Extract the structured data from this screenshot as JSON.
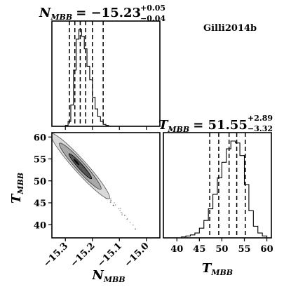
{
  "annotation": "Gilli2014b",
  "chart_data": [
    {
      "type": "histogram",
      "panel": "N_MBB marginal",
      "title_param": "N",
      "title_sub": "MBB",
      "title_value": "= −15.23",
      "title_plus": "+0.05",
      "title_minus": "−0.04",
      "xlim": [
        -15.35,
        -14.95
      ],
      "quantiles": [
        -15.285,
        -15.265,
        -15.245,
        -15.225,
        -15.2,
        -15.16
      ],
      "bins": [
        -15.35,
        -15.34,
        -15.33,
        -15.32,
        -15.31,
        -15.3,
        -15.29,
        -15.28,
        -15.27,
        -15.26,
        -15.25,
        -15.24,
        -15.23,
        -15.22,
        -15.21,
        -15.2,
        -15.19,
        -15.18,
        -15.17,
        -15.16,
        -15.15,
        -15.14,
        -15.13,
        -15.12,
        -15.11,
        -15.1,
        -15.09,
        -15.08,
        -15.07,
        -15.06,
        -15.05,
        -15.04,
        -15.03,
        -15.02,
        -15.01,
        -15.0,
        -14.99,
        -14.98,
        -14.97,
        -14.96,
        -14.95
      ],
      "counts": [
        0,
        0,
        0,
        0,
        0,
        1,
        5,
        22,
        58,
        90,
        100,
        93,
        80,
        62,
        48,
        30,
        18,
        10,
        5,
        2,
        1,
        0,
        0,
        0,
        0,
        0,
        0,
        0,
        0,
        0,
        0,
        0,
        0,
        0,
        0,
        0,
        0,
        0,
        0,
        0
      ]
    },
    {
      "type": "scatter",
      "panel": "joint posterior",
      "xlabel": "N",
      "xlabel_sub": "MBB",
      "ylabel": "T",
      "ylabel_sub": "MBB",
      "xlim": [
        -15.35,
        -14.95
      ],
      "ylim": [
        37,
        61
      ],
      "xticks": [
        -15.3,
        -15.2,
        -15.1,
        -15.0
      ],
      "xtick_labels": [
        "−15.3",
        "−15.2",
        "−15.1",
        "−15.0"
      ],
      "yticks": [
        40,
        45,
        50,
        55,
        60
      ],
      "ytick_labels": [
        "40",
        "45",
        "50",
        "55",
        "60"
      ],
      "contour_levels": 3,
      "correlation_line": {
        "x": [
          -15.335,
          -15.04
        ],
        "y": [
          59.5,
          39.3
        ]
      }
    },
    {
      "type": "histogram",
      "panel": "T_MBB marginal",
      "title_param": "T",
      "title_sub": "MBB",
      "title_value": "= 51.55",
      "title_plus": "+2.89",
      "title_minus": "−3.32",
      "xlabel": "T",
      "xlabel_sub": "MBB",
      "xlim": [
        37,
        61
      ],
      "xticks": [
        40,
        45,
        50,
        55,
        60
      ],
      "xtick_labels": [
        "40",
        "45",
        "50",
        "55",
        "60"
      ],
      "quantiles": [
        47.3,
        49.3,
        51.6,
        53.3,
        55.2
      ],
      "bins": [
        37,
        38,
        39,
        40,
        41,
        42,
        43,
        44,
        45,
        46,
        47,
        48,
        49,
        50,
        51,
        52,
        53,
        54,
        55,
        56,
        57,
        58,
        59,
        60,
        61
      ],
      "counts": [
        0,
        0,
        0,
        0,
        1,
        2,
        3,
        5,
        10,
        18,
        30,
        45,
        62,
        78,
        92,
        100,
        98,
        85,
        55,
        28,
        12,
        5,
        2,
        0
      ]
    }
  ]
}
